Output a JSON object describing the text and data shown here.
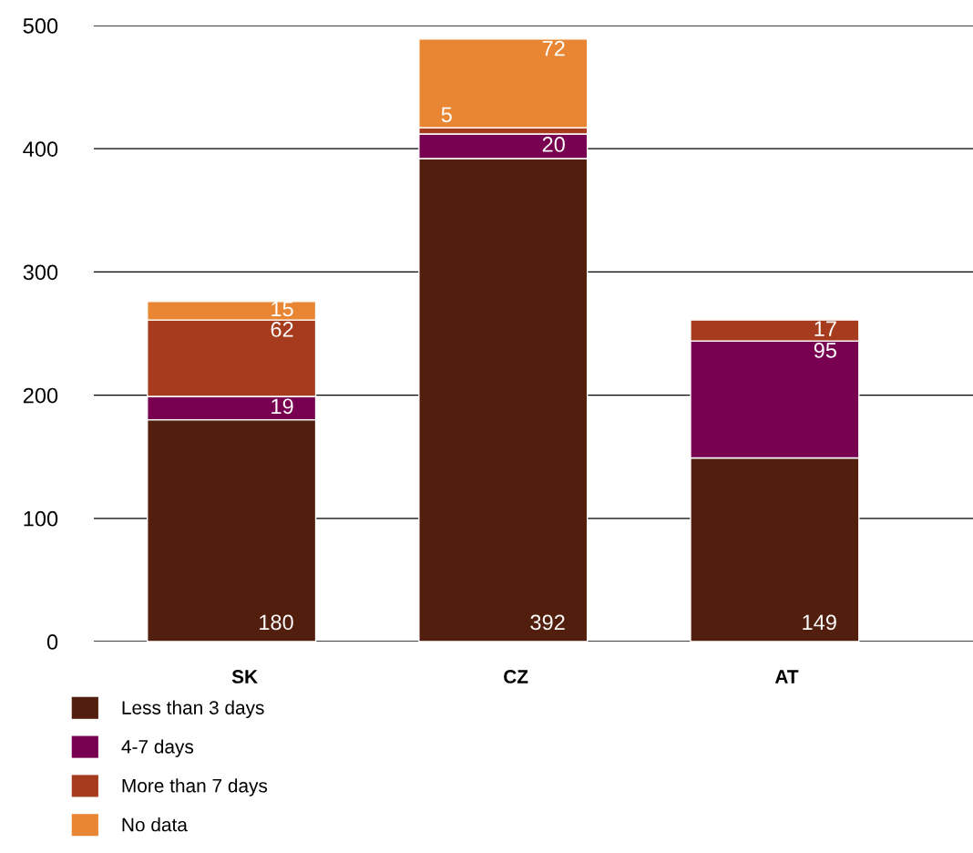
{
  "chart_data": {
    "type": "bar",
    "stacked": true,
    "categories": [
      "SK",
      "CZ",
      "AT"
    ],
    "series": [
      {
        "name": "Less than 3 days",
        "color": "#521e0e",
        "values": [
          180,
          392,
          149
        ]
      },
      {
        "name": "4-7 days",
        "color": "#770050",
        "values": [
          19,
          20,
          95
        ]
      },
      {
        "name": "More than 7 days",
        "color": "#a63b1e",
        "values": [
          62,
          5,
          17
        ]
      },
      {
        "name": "No data",
        "color": "#e88634",
        "values": [
          15,
          72,
          null
        ]
      }
    ],
    "ylim": [
      0,
      500
    ],
    "yticks": [
      0,
      100,
      200,
      300,
      400,
      500
    ],
    "grid": "y",
    "legend": "bottom left",
    "data_labels": true
  }
}
